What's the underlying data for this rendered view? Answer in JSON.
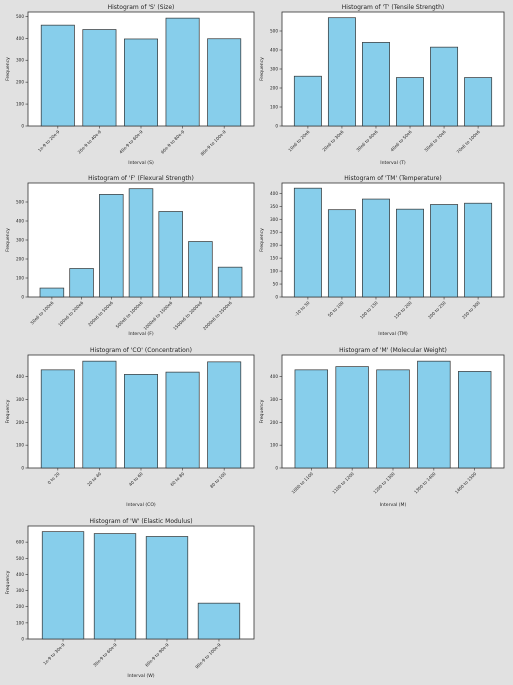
{
  "chart_data": [
    {
      "type": "bar",
      "title": "Histogram of 'S' (Size)",
      "xlabel": "Interval (S)",
      "ylabel": "Frequency",
      "categories": [
        "1e-9 to 20e-9",
        "20e-9 to 40e-9",
        "40e-9 to 60e-9",
        "60e-9 to 80e-9",
        "80e-9 to 100e-9"
      ],
      "values": [
        460,
        440,
        397,
        492,
        398
      ],
      "ylim": [
        0,
        520
      ],
      "yticks": [
        0,
        100,
        200,
        300,
        400,
        500
      ]
    },
    {
      "type": "bar",
      "title": "Histogram of 'T' (Tensile Strength)",
      "xlabel": "Interval (T)",
      "ylabel": "Frequency",
      "categories": [
        "10e6 to 20e6",
        "20e6 to 30e6",
        "30e6 to 40e6",
        "40e6 to 50e6",
        "50e6 to 70e6",
        "70e6 to 100e6"
      ],
      "values": [
        262,
        570,
        440,
        255,
        415,
        255
      ],
      "ylim": [
        0,
        600
      ],
      "yticks": [
        0,
        100,
        200,
        300,
        400,
        500
      ]
    },
    {
      "type": "bar",
      "title": "Histogram of 'F' (Flexural Strength)",
      "xlabel": "Interval (F)",
      "ylabel": "Frequency",
      "categories": [
        "50e6 to 100e6",
        "100e6 to 200e6",
        "200e6 to 500e6",
        "500e6 to 1000e6",
        "1000e6 to 1500e6",
        "1500e6 to 2000e6",
        "2000e6 to 2500e6"
      ],
      "values": [
        47,
        150,
        540,
        570,
        450,
        292,
        157
      ],
      "ylim": [
        0,
        600
      ],
      "yticks": [
        0,
        100,
        200,
        300,
        400,
        500
      ]
    },
    {
      "type": "bar",
      "title": "Histogram of 'TM' (Temperature)",
      "xlabel": "Interval (TM)",
      "ylabel": "Frequency",
      "categories": [
        "-10 to 50",
        "50 to 100",
        "100 to 150",
        "150 to 200",
        "200 to 250",
        "250 to 300"
      ],
      "values": [
        420,
        337,
        378,
        339,
        357,
        362
      ],
      "ylim": [
        0,
        440
      ],
      "yticks": [
        0,
        50,
        100,
        150,
        200,
        250,
        300,
        350,
        400
      ]
    },
    {
      "type": "bar",
      "title": "Histogram of 'CO' (Concentration)",
      "xlabel": "Interval (CO)",
      "ylabel": "Frequency",
      "categories": [
        "0 to 20",
        "20 to 40",
        "40 to 60",
        "60 to 80",
        "80 to 100"
      ],
      "values": [
        430,
        468,
        410,
        420,
        465
      ],
      "ylim": [
        0,
        495
      ],
      "yticks": [
        0,
        100,
        200,
        300,
        400
      ]
    },
    {
      "type": "bar",
      "title": "Histogram of 'M' (Molecular Weight)",
      "xlabel": "Interval (M)",
      "ylabel": "Frequency",
      "categories": [
        "1000 to 1100",
        "1100 to 1200",
        "1200 to 1300",
        "1300 to 1400",
        "1400 to 1500"
      ],
      "values": [
        430,
        444,
        430,
        468,
        423
      ],
      "ylim": [
        0,
        495
      ],
      "yticks": [
        0,
        100,
        200,
        300,
        400
      ]
    },
    {
      "type": "bar",
      "title": "Histogram of 'W' (Elastic Modulus)",
      "xlabel": "Interval (W)",
      "ylabel": "Frequency",
      "categories": [
        "1e-9 to 30e-9",
        "30e-9 to 60e-9",
        "60e-9 to 90e-9",
        "90e-9 to 100e-9"
      ],
      "values": [
        665,
        653,
        635,
        222
      ],
      "ylim": [
        0,
        700
      ],
      "yticks": [
        0,
        100,
        200,
        300,
        400,
        500,
        600
      ]
    }
  ]
}
